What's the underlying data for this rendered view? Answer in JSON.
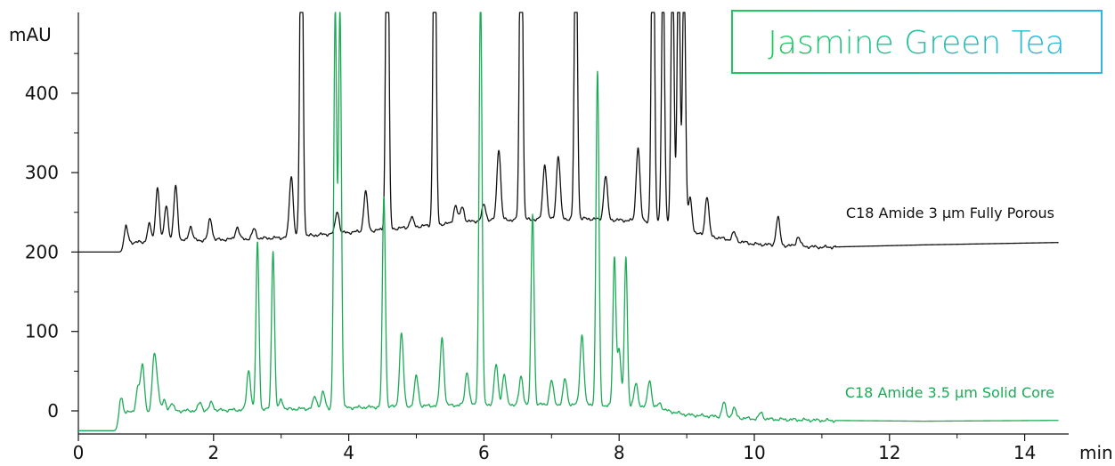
{
  "chart_data": {
    "type": "line",
    "title": "Jasmine Green Tea",
    "xlabel": "min",
    "ylabel": "mAU",
    "xlim": [
      0,
      15
    ],
    "ylim": [
      -25,
      500
    ],
    "x_ticks": [
      "0",
      "2",
      "4",
      "6",
      "8",
      "10",
      "12",
      "14"
    ],
    "y_ticks": [
      "0",
      "100",
      "200",
      "300",
      "400"
    ],
    "grid": false,
    "colors": {
      "black_series": "#111111",
      "green_series": "#1aab55",
      "title_gradient_start": "#1ec85a",
      "title_gradient_end": "#2bb6e6"
    },
    "series": [
      {
        "name": "C18 Amide 3 µm Fully Porous",
        "color": "#111111",
        "baseline": [
          [
            0,
            200
          ],
          [
            0.68,
            200
          ],
          [
            0.75,
            212
          ],
          [
            3,
            218
          ],
          [
            4.5,
            228
          ],
          [
            6,
            240
          ],
          [
            7.5,
            242
          ],
          [
            8.6,
            238
          ],
          [
            9.2,
            222
          ],
          [
            10,
            210
          ],
          [
            11,
            206
          ],
          [
            12.5,
            209
          ],
          [
            14.5,
            212
          ]
        ],
        "peaks": [
          {
            "t": 0.7,
            "h": 28
          },
          {
            "t": 1.05,
            "h": 22
          },
          {
            "t": 1.17,
            "h": 68
          },
          {
            "t": 1.3,
            "h": 46
          },
          {
            "t": 1.44,
            "h": 70
          },
          {
            "t": 1.66,
            "h": 18
          },
          {
            "t": 1.95,
            "h": 27
          },
          {
            "t": 2.35,
            "h": 15
          },
          {
            "t": 2.6,
            "h": 12
          },
          {
            "t": 3.15,
            "h": 77
          },
          {
            "t": 3.3,
            "h": 500
          },
          {
            "t": 3.83,
            "h": 28
          },
          {
            "t": 4.25,
            "h": 50
          },
          {
            "t": 4.57,
            "h": 520
          },
          {
            "t": 4.93,
            "h": 12
          },
          {
            "t": 5.27,
            "h": 465
          },
          {
            "t": 5.58,
            "h": 22
          },
          {
            "t": 5.68,
            "h": 20
          },
          {
            "t": 6.0,
            "h": 20
          },
          {
            "t": 6.22,
            "h": 90
          },
          {
            "t": 6.55,
            "h": 500
          },
          {
            "t": 6.9,
            "h": 70
          },
          {
            "t": 7.1,
            "h": 80
          },
          {
            "t": 7.36,
            "h": 400
          },
          {
            "t": 7.8,
            "h": 55
          },
          {
            "t": 8.28,
            "h": 93
          },
          {
            "t": 8.5,
            "h": 470
          },
          {
            "t": 8.65,
            "h": 325
          },
          {
            "t": 8.79,
            "h": 355
          },
          {
            "t": 8.88,
            "h": 350
          },
          {
            "t": 8.96,
            "h": 335
          },
          {
            "t": 9.05,
            "h": 42
          },
          {
            "t": 9.3,
            "h": 50
          },
          {
            "t": 9.7,
            "h": 10
          },
          {
            "t": 10.35,
            "h": 35
          },
          {
            "t": 10.65,
            "h": 12
          }
        ]
      },
      {
        "name": "C18 Amide 3.5 µm Solid Core",
        "color": "#1aab55",
        "baseline": [
          [
            0,
            -25
          ],
          [
            0.6,
            -25
          ],
          [
            0.65,
            -2
          ],
          [
            1.5,
            0
          ],
          [
            3,
            2
          ],
          [
            4.5,
            5
          ],
          [
            6,
            8
          ],
          [
            7.5,
            8
          ],
          [
            8.5,
            4
          ],
          [
            9,
            -5
          ],
          [
            10,
            -10
          ],
          [
            11,
            -12
          ],
          [
            12.5,
            -13
          ],
          [
            14.5,
            -12
          ]
        ],
        "peaks": [
          {
            "t": 0.62,
            "h": 30
          },
          {
            "t": 0.88,
            "h": 30
          },
          {
            "t": 0.95,
            "h": 58
          },
          {
            "t": 1.12,
            "h": 66
          },
          {
            "t": 1.17,
            "h": 30
          },
          {
            "t": 1.27,
            "h": 13
          },
          {
            "t": 1.38,
            "h": 10
          },
          {
            "t": 1.8,
            "h": 10
          },
          {
            "t": 1.97,
            "h": 10
          },
          {
            "t": 2.52,
            "h": 50
          },
          {
            "t": 2.65,
            "h": 210
          },
          {
            "t": 2.88,
            "h": 200
          },
          {
            "t": 3.0,
            "h": 12
          },
          {
            "t": 3.5,
            "h": 15
          },
          {
            "t": 3.62,
            "h": 20
          },
          {
            "t": 3.8,
            "h": 500
          },
          {
            "t": 3.87,
            "h": 500
          },
          {
            "t": 4.52,
            "h": 265
          },
          {
            "t": 4.78,
            "h": 92
          },
          {
            "t": 5.0,
            "h": 38
          },
          {
            "t": 5.38,
            "h": 85
          },
          {
            "t": 5.75,
            "h": 42
          },
          {
            "t": 5.95,
            "h": 520
          },
          {
            "t": 6.18,
            "h": 50
          },
          {
            "t": 6.3,
            "h": 38
          },
          {
            "t": 6.55,
            "h": 35
          },
          {
            "t": 6.72,
            "h": 240
          },
          {
            "t": 7.0,
            "h": 30
          },
          {
            "t": 7.2,
            "h": 32
          },
          {
            "t": 7.45,
            "h": 88
          },
          {
            "t": 7.68,
            "h": 420
          },
          {
            "t": 7.93,
            "h": 185
          },
          {
            "t": 8.0,
            "h": 70
          },
          {
            "t": 8.1,
            "h": 190
          },
          {
            "t": 8.25,
            "h": 30
          },
          {
            "t": 8.45,
            "h": 35
          },
          {
            "t": 8.6,
            "h": 8
          },
          {
            "t": 9.55,
            "h": 18
          },
          {
            "t": 9.7,
            "h": 12
          },
          {
            "t": 10.1,
            "h": 8
          }
        ]
      }
    ]
  }
}
